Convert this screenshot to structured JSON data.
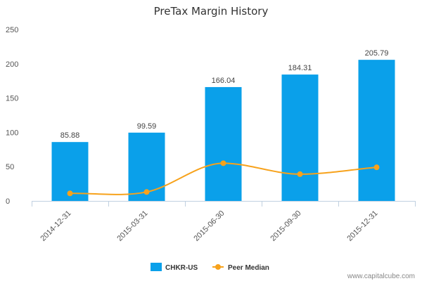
{
  "chart_data": {
    "type": "bar",
    "title": "PreTax Margin History",
    "categories": [
      "2014-12-31",
      "2015-03-31",
      "2015-06-30",
      "2015-09-30",
      "2015-12-31"
    ],
    "series": [
      {
        "name": "CHKR-US",
        "type": "bar",
        "color": "#0aa0ea",
        "values": [
          85.88,
          99.59,
          166.04,
          184.31,
          205.79
        ],
        "value_labels": [
          "85.88",
          "99.59",
          "166.04",
          "184.31",
          "205.79"
        ]
      },
      {
        "name": "Peer Median",
        "type": "line",
        "color": "#f7a21b",
        "values": [
          11,
          13,
          55,
          39,
          49
        ]
      }
    ],
    "ylim": [
      0,
      250
    ],
    "yticks": [
      "0",
      "50",
      "100",
      "150",
      "200",
      "250"
    ],
    "grid": false,
    "legend": "bottom-center"
  },
  "footer": {
    "credit": "www.capitalcube.com"
  }
}
